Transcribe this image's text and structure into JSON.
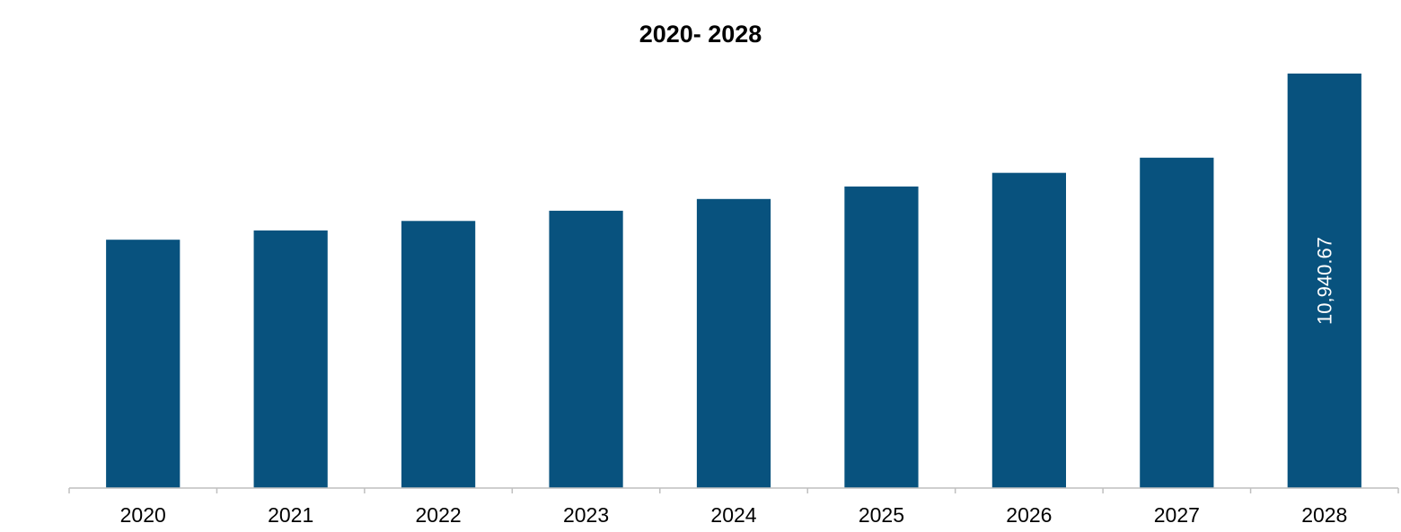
{
  "chart_data": {
    "type": "bar",
    "title": "2020- 2028",
    "xlabel": "",
    "ylabel": "",
    "categories": [
      "2020",
      "2021",
      "2022",
      "2023",
      "2024",
      "2025",
      "2026",
      "2027",
      "2028"
    ],
    "values": [
      6555,
      6800,
      7050,
      7320,
      7630,
      7960,
      8320,
      8720,
      10940.67
    ],
    "data_labels": [
      "",
      "",
      "",
      "",
      "",
      "",
      "",
      "",
      "10,940.67"
    ],
    "ylim": [
      0,
      10940.67
    ],
    "grid": false,
    "legend": "none",
    "bar_color": "#08527E",
    "label_color": "#ffffff"
  }
}
